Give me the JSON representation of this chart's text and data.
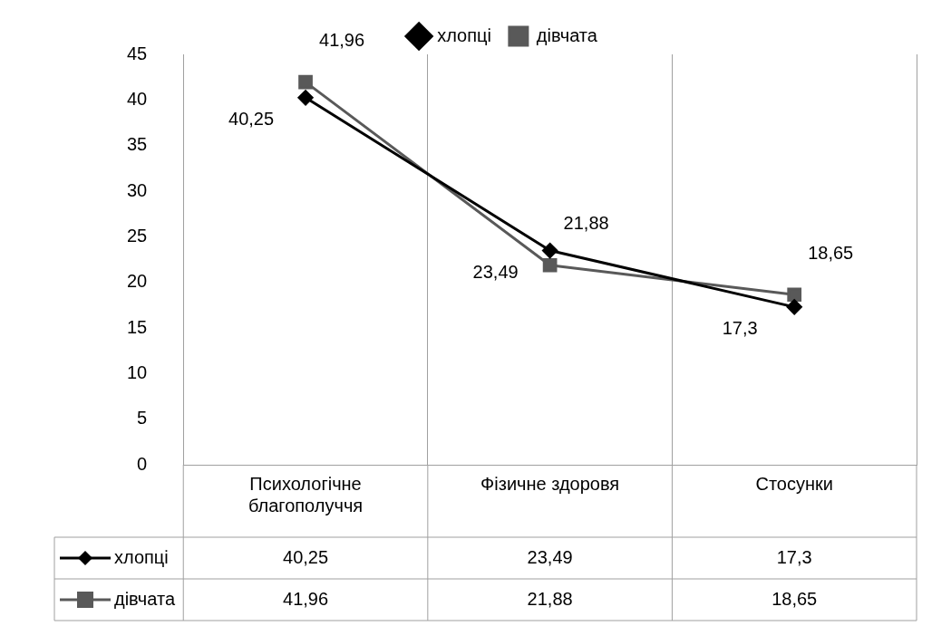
{
  "chart_data": {
    "type": "line",
    "categories": [
      "Психологічне благополуччя",
      "Фізичне здоровя",
      "Стосунки"
    ],
    "series": [
      {
        "name": "хлопці",
        "color": "#000000",
        "marker": "diamond",
        "values": [
          40.25,
          23.49,
          17.3
        ],
        "value_labels": [
          "40,25",
          "23,49",
          "17,3"
        ]
      },
      {
        "name": "дівчата",
        "color": "#595959",
        "marker": "square",
        "values": [
          41.96,
          21.88,
          18.65
        ],
        "value_labels": [
          "41,96",
          "21,88",
          "18,65"
        ]
      }
    ],
    "ylim": [
      0,
      45
    ],
    "yticks": [
      0,
      5,
      10,
      15,
      20,
      25,
      30,
      35,
      40,
      45
    ],
    "grid": "x",
    "legend": "top"
  }
}
